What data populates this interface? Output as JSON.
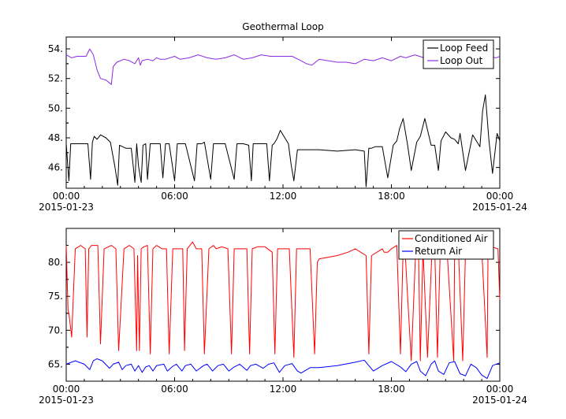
{
  "chart_data": [
    {
      "type": "line",
      "title": "Geothermal Loop",
      "xlabel": "",
      "ylabel": "",
      "x_ticks": [
        {
          "hour": 0,
          "label": "00:00",
          "sublabel": "2015-01-23"
        },
        {
          "hour": 6,
          "label": "06:00",
          "sublabel": ""
        },
        {
          "hour": 12,
          "label": "12:00",
          "sublabel": ""
        },
        {
          "hour": 18,
          "label": "18:00",
          "sublabel": ""
        },
        {
          "hour": 24,
          "label": "00:00",
          "sublabel": "2015-01-24"
        }
      ],
      "xlim": [
        "2015-01-23 00:00",
        "2015-01-24 00:00"
      ],
      "ylim": [
        44.6,
        54.8
      ],
      "y_ticks": [
        46,
        48,
        50,
        52,
        54
      ],
      "y_tick_labels": [
        "46.",
        "48.",
        "50.",
        "52.",
        "54."
      ],
      "legend": "top-right",
      "series": [
        {
          "name": "Loop Feed",
          "color": "#000000",
          "x": [
            0.0,
            0.15,
            0.25,
            0.35,
            0.55,
            1.2,
            1.35,
            1.45,
            1.55,
            1.7,
            1.9,
            2.2,
            2.45,
            2.7,
            2.85,
            2.95,
            3.3,
            3.6,
            3.7,
            3.8,
            3.9,
            4.0,
            4.15,
            4.25,
            4.4,
            4.5,
            4.65,
            4.9,
            5.2,
            5.35,
            5.5,
            5.7,
            6.0,
            6.15,
            6.3,
            6.45,
            6.6,
            7.1,
            7.25,
            7.35,
            7.5,
            7.65,
            8.0,
            8.15,
            8.3,
            8.45,
            8.6,
            8.8,
            9.3,
            9.45,
            9.6,
            9.8,
            10.1,
            10.25,
            10.35,
            10.5,
            10.7,
            11.1,
            11.25,
            11.4,
            11.5,
            11.65,
            11.85,
            12.3,
            12.45,
            12.6,
            12.8,
            13.0,
            13.2,
            13.4,
            14.0,
            15.0,
            16.0,
            16.5,
            16.6,
            16.75,
            16.9,
            17.1,
            17.5,
            17.8,
            18.1,
            18.3,
            18.45,
            18.65,
            18.9,
            19.1,
            19.4,
            19.6,
            19.85,
            20.2,
            20.4,
            20.6,
            20.75,
            21.0,
            21.3,
            21.5,
            21.7,
            21.8,
            22.1,
            22.5,
            22.9,
            23.05,
            23.2,
            23.4,
            23.6,
            23.85,
            24.0
          ],
          "y": [
            47.6,
            45.1,
            47.6,
            47.6,
            47.6,
            47.6,
            45.2,
            47.7,
            48.1,
            47.9,
            48.2,
            48.0,
            47.7,
            46.0,
            44.8,
            47.5,
            47.3,
            47.3,
            46.2,
            45.0,
            47.6,
            46.1,
            45.0,
            47.5,
            47.6,
            45.2,
            47.6,
            47.6,
            47.6,
            45.3,
            47.6,
            47.6,
            45.1,
            47.6,
            47.6,
            47.6,
            47.6,
            45.1,
            47.6,
            47.6,
            47.6,
            47.7,
            45.2,
            47.6,
            47.6,
            47.6,
            47.6,
            47.6,
            45.2,
            47.6,
            47.6,
            47.6,
            47.5,
            45.1,
            47.6,
            47.6,
            47.6,
            47.6,
            45.1,
            47.5,
            47.6,
            47.9,
            48.5,
            47.6,
            46.2,
            45.1,
            47.2,
            47.2,
            47.2,
            47.2,
            47.2,
            47.1,
            47.2,
            47.1,
            44.7,
            47.3,
            47.3,
            47.4,
            47.4,
            45.3,
            47.5,
            47.8,
            48.6,
            49.3,
            47.5,
            45.8,
            47.7,
            48.1,
            49.3,
            47.5,
            47.5,
            45.8,
            47.8,
            48.4,
            48.0,
            47.9,
            47.6,
            48.3,
            45.8,
            48.2,
            47.4,
            49.8,
            50.9,
            47.8,
            45.6,
            48.3,
            47.8
          ]
        },
        {
          "name": "Loop Out",
          "color": "#8a2be2",
          "x": [
            0.0,
            0.3,
            0.6,
            0.9,
            1.1,
            1.3,
            1.5,
            1.7,
            1.9,
            2.2,
            2.5,
            2.6,
            2.8,
            3.2,
            3.5,
            3.8,
            4.0,
            4.1,
            4.2,
            4.5,
            4.8,
            5.0,
            5.2,
            5.5,
            6.0,
            6.3,
            6.8,
            7.3,
            7.8,
            8.3,
            8.8,
            9.3,
            9.8,
            10.3,
            10.8,
            11.3,
            11.8,
            12.5,
            13.0,
            13.3,
            13.6,
            14.0,
            14.5,
            15.0,
            15.5,
            16.0,
            16.5,
            17.0,
            17.5,
            18.0,
            18.5,
            18.8,
            19.3,
            19.8,
            20.3,
            20.8,
            21.3,
            21.8,
            22.3,
            22.8,
            23.3,
            23.8,
            24.0
          ],
          "y": [
            53.6,
            53.4,
            53.5,
            53.5,
            53.5,
            54.0,
            53.6,
            52.6,
            52.0,
            51.9,
            51.6,
            52.8,
            53.1,
            53.3,
            53.2,
            53.0,
            53.4,
            52.9,
            53.2,
            53.3,
            53.2,
            53.4,
            53.3,
            53.3,
            53.5,
            53.3,
            53.4,
            53.6,
            53.4,
            53.3,
            53.4,
            53.6,
            53.3,
            53.4,
            53.6,
            53.5,
            53.5,
            53.5,
            53.2,
            53.0,
            52.9,
            53.3,
            53.2,
            53.1,
            53.1,
            53.0,
            53.3,
            53.2,
            53.4,
            53.2,
            53.5,
            53.4,
            53.6,
            53.4,
            53.5,
            53.6,
            53.5,
            53.5,
            53.7,
            53.6,
            53.5,
            53.4,
            53.5
          ]
        }
      ]
    },
    {
      "type": "line",
      "title": "",
      "xlabel": "",
      "ylabel": "",
      "x_ticks": [
        {
          "hour": 0,
          "label": "00:00",
          "sublabel": "2015-01-23"
        },
        {
          "hour": 6,
          "label": "06:00",
          "sublabel": ""
        },
        {
          "hour": 12,
          "label": "12:00",
          "sublabel": ""
        },
        {
          "hour": 18,
          "label": "18:00",
          "sublabel": ""
        },
        {
          "hour": 24,
          "label": "00:00",
          "sublabel": "2015-01-24"
        }
      ],
      "xlim": [
        "2015-01-23 00:00",
        "2015-01-24 00:00"
      ],
      "ylim": [
        62.5,
        85.0
      ],
      "y_ticks": [
        65,
        70,
        75,
        80
      ],
      "y_tick_labels": [
        "65.",
        "70.",
        "75.",
        "80."
      ],
      "legend": "top-right",
      "series": [
        {
          "name": "Conditioned Air",
          "color": "#ff0000",
          "x": [
            0.0,
            0.1,
            0.15,
            0.3,
            0.5,
            0.8,
            1.05,
            1.15,
            1.25,
            1.4,
            1.6,
            1.75,
            1.9,
            2.1,
            2.5,
            2.75,
            2.9,
            3.2,
            3.5,
            3.75,
            3.9,
            3.95,
            4.05,
            4.15,
            4.3,
            4.5,
            4.65,
            4.8,
            5.0,
            5.3,
            5.55,
            5.7,
            5.9,
            6.2,
            6.45,
            6.55,
            6.7,
            7.0,
            7.2,
            7.35,
            7.5,
            7.65,
            7.9,
            8.15,
            8.3,
            8.6,
            8.95,
            9.15,
            9.3,
            9.6,
            10.0,
            10.15,
            10.3,
            10.6,
            11.0,
            11.4,
            11.55,
            11.7,
            12.0,
            12.35,
            12.6,
            12.75,
            12.9,
            13.5,
            13.75,
            13.9,
            14.0,
            15.0,
            15.6,
            16.0,
            16.6,
            16.75,
            16.9,
            17.5,
            17.6,
            17.8,
            18.0,
            18.3,
            18.5,
            18.65,
            18.75,
            19.1,
            19.35,
            19.5,
            19.6,
            19.75,
            20.0,
            20.25,
            20.4,
            20.55,
            20.7,
            21.1,
            21.45,
            21.5,
            21.7,
            21.95,
            22.1,
            22.5,
            23.0,
            23.3,
            23.35,
            23.5,
            23.9,
            24.0
          ],
          "y": [
            82.5,
            73.0,
            72.5,
            69.0,
            82.0,
            82.5,
            82.0,
            69.0,
            82.0,
            82.5,
            82.5,
            82.5,
            68.0,
            82.0,
            82.5,
            82.0,
            67.0,
            82.0,
            82.5,
            82.0,
            67.0,
            81.0,
            67.0,
            82.0,
            82.3,
            82.5,
            66.5,
            82.0,
            82.5,
            82.0,
            82.0,
            66.5,
            82.0,
            82.0,
            82.0,
            67.0,
            82.0,
            83.0,
            82.0,
            82.0,
            82.0,
            66.5,
            82.0,
            82.5,
            82.0,
            82.3,
            82.0,
            66.5,
            82.0,
            82.0,
            82.0,
            66.5,
            82.0,
            82.3,
            82.3,
            81.5,
            66.5,
            82.0,
            82.0,
            82.0,
            66.0,
            82.0,
            82.0,
            82.0,
            66.5,
            80.0,
            80.5,
            81.0,
            81.5,
            82.0,
            81.0,
            66.5,
            81.0,
            82.0,
            81.5,
            81.5,
            82.0,
            82.5,
            66.5,
            82.0,
            82.0,
            65.5,
            82.0,
            82.0,
            65.5,
            82.0,
            66.0,
            82.0,
            82.0,
            66.0,
            81.5,
            81.0,
            65.5,
            81.5,
            82.5,
            65.5,
            81.5,
            81.5,
            82.0,
            66.0,
            82.0,
            82.3,
            82.0,
            74.5
          ]
        },
        {
          "name": "Return Air",
          "color": "#0000ff",
          "x": [
            0.0,
            0.5,
            1.0,
            1.3,
            1.5,
            1.7,
            2.0,
            2.4,
            2.6,
            2.9,
            3.1,
            3.3,
            3.6,
            3.8,
            4.0,
            4.2,
            4.4,
            4.6,
            4.8,
            5.0,
            5.4,
            5.6,
            5.9,
            6.1,
            6.4,
            6.6,
            6.9,
            7.2,
            7.6,
            7.8,
            8.1,
            8.4,
            8.7,
            9.0,
            9.3,
            9.6,
            10.0,
            10.2,
            10.5,
            10.9,
            11.2,
            11.5,
            11.8,
            12.1,
            12.5,
            12.8,
            13.0,
            13.5,
            14.0,
            15.0,
            16.0,
            16.5,
            17.0,
            17.5,
            18.0,
            18.5,
            18.8,
            19.1,
            19.4,
            19.6,
            19.9,
            20.2,
            20.4,
            20.6,
            20.9,
            21.2,
            21.5,
            21.8,
            22.1,
            22.4,
            22.7,
            23.0,
            23.3,
            23.6,
            24.0
          ],
          "y": [
            65.0,
            65.5,
            65.0,
            64.2,
            65.5,
            65.8,
            65.5,
            64.4,
            65.0,
            65.3,
            64.2,
            64.8,
            65.0,
            64.0,
            64.8,
            63.8,
            64.6,
            64.8,
            64.0,
            64.8,
            65.0,
            64.0,
            64.7,
            65.0,
            64.0,
            64.8,
            65.0,
            64.0,
            64.8,
            65.0,
            64.0,
            64.8,
            65.0,
            64.0,
            64.6,
            65.0,
            64.1,
            64.8,
            65.0,
            64.4,
            65.0,
            65.2,
            63.8,
            64.8,
            65.1,
            64.0,
            63.7,
            64.5,
            64.5,
            64.8,
            65.3,
            65.6,
            64.0,
            64.8,
            65.4,
            64.6,
            63.9,
            65.0,
            65.4,
            64.0,
            63.3,
            65.0,
            65.5,
            64.0,
            63.5,
            65.2,
            65.4,
            63.6,
            63.3,
            65.0,
            64.5,
            63.4,
            62.9,
            64.8,
            65.2
          ]
        }
      ]
    }
  ]
}
